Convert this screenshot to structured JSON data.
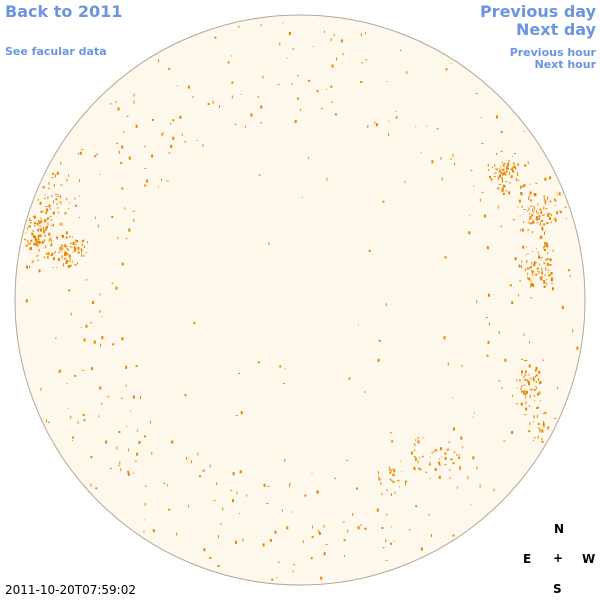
{
  "nav": {
    "back_label": "Back to 2011",
    "facular_label": "See facular data",
    "prev_day_label": "Previous day",
    "next_day_label": "Next day",
    "prev_hour_label": "Previous hour",
    "next_hour_label": "Next hour"
  },
  "compass": {
    "north": "N",
    "east": "E",
    "center": "+",
    "west": "W",
    "south": "S"
  },
  "timestamp": "2011-10-20T07:59:02",
  "colors": {
    "link": "#6b95e0",
    "disk_fill": "#fff8ec",
    "disk_edge": "#b0a898",
    "feature": "#e88400"
  },
  "image": {
    "description_icon": "solar-disk-facula-map"
  }
}
